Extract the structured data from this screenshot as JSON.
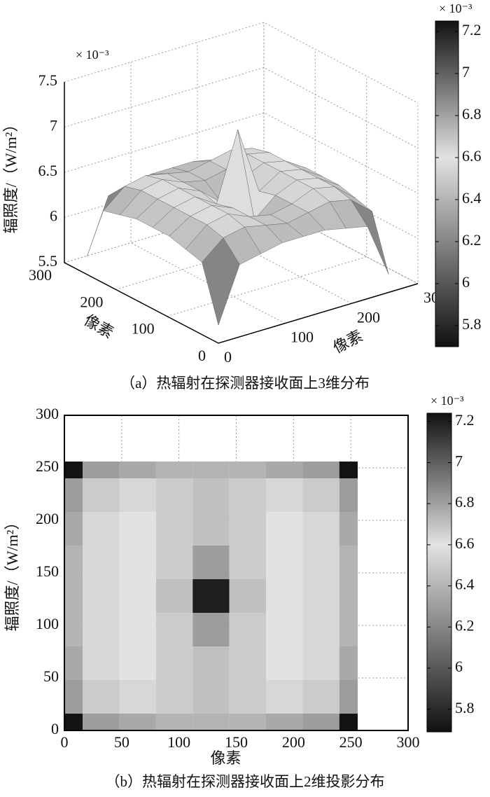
{
  "chart_data": [
    {
      "type": "surface3d",
      "caption": "（a）热辐射在探测器接收面上3维分布",
      "xlabel": "像素",
      "ylabel": "像素",
      "zlabel": "辐照度/（W/m²）",
      "z_multiplier": "× 10⁻³",
      "x": [
        0,
        32,
        64,
        96,
        128,
        160,
        192,
        224,
        256
      ],
      "y": [
        0,
        32,
        64,
        96,
        128,
        160,
        192,
        224,
        256
      ],
      "z": [
        [
          5.7,
          6.3,
          6.35,
          6.4,
          6.4,
          6.4,
          6.35,
          6.3,
          5.7
        ],
        [
          6.3,
          6.5,
          6.55,
          6.5,
          6.45,
          6.5,
          6.55,
          6.5,
          6.3
        ],
        [
          6.35,
          6.55,
          6.6,
          6.5,
          6.45,
          6.5,
          6.6,
          6.55,
          6.35
        ],
        [
          6.4,
          6.55,
          6.6,
          6.5,
          6.3,
          6.5,
          6.6,
          6.55,
          6.4
        ],
        [
          6.4,
          6.55,
          6.6,
          6.45,
          7.2,
          6.45,
          6.6,
          6.55,
          6.4
        ],
        [
          6.4,
          6.55,
          6.6,
          6.5,
          6.3,
          6.5,
          6.6,
          6.55,
          6.4
        ],
        [
          6.35,
          6.55,
          6.6,
          6.5,
          6.45,
          6.5,
          6.6,
          6.55,
          6.35
        ],
        [
          6.3,
          6.5,
          6.55,
          6.5,
          6.45,
          6.5,
          6.55,
          6.5,
          6.3
        ],
        [
          5.7,
          6.3,
          6.35,
          6.4,
          6.4,
          6.4,
          6.35,
          6.3,
          5.7
        ]
      ],
      "xlim": [
        0,
        300
      ],
      "ylim": [
        0,
        300
      ],
      "zlim": [
        5.5,
        7.5
      ],
      "xticks": [
        0,
        100,
        200,
        300
      ],
      "yticks": [
        0,
        100,
        200,
        300
      ],
      "zticks": [
        5.5,
        6,
        6.5,
        7,
        7.5
      ],
      "grid": true,
      "colormap": [
        {
          "value": 5.7,
          "color": "#111111"
        },
        {
          "value": 6.6,
          "color": "#e2e2e2"
        },
        {
          "value": 7.25,
          "color": "#111111"
        }
      ],
      "colorbar": {
        "multiplier": "× 10⁻³",
        "clim": [
          5.7,
          7.25
        ],
        "ticks": [
          5.8,
          6,
          6.2,
          6.4,
          6.6,
          6.8,
          7,
          7.2
        ]
      }
    },
    {
      "type": "heatmap",
      "caption": "（b）热辐射在探测器接收面上2维投影分布",
      "xlabel": "像素",
      "ylabel": "辐照度/（W/m²）",
      "x": [
        0,
        32,
        64,
        96,
        128,
        160,
        192,
        224,
        256
      ],
      "y": [
        0,
        32,
        64,
        96,
        128,
        160,
        192,
        224,
        256
      ],
      "z": [
        [
          5.7,
          6.3,
          6.35,
          6.4,
          6.4,
          6.4,
          6.35,
          6.3,
          5.7
        ],
        [
          6.3,
          6.5,
          6.55,
          6.5,
          6.45,
          6.5,
          6.55,
          6.5,
          6.3
        ],
        [
          6.35,
          6.55,
          6.6,
          6.5,
          6.45,
          6.5,
          6.6,
          6.55,
          6.35
        ],
        [
          6.4,
          6.55,
          6.6,
          6.5,
          6.3,
          6.5,
          6.6,
          6.55,
          6.4
        ],
        [
          6.4,
          6.55,
          6.6,
          6.45,
          7.2,
          6.45,
          6.6,
          6.55,
          6.4
        ],
        [
          6.4,
          6.55,
          6.6,
          6.5,
          6.3,
          6.5,
          6.6,
          6.55,
          6.4
        ],
        [
          6.35,
          6.55,
          6.6,
          6.5,
          6.45,
          6.5,
          6.6,
          6.55,
          6.35
        ],
        [
          6.3,
          6.5,
          6.55,
          6.5,
          6.45,
          6.5,
          6.55,
          6.5,
          6.3
        ],
        [
          5.7,
          6.3,
          6.35,
          6.4,
          6.4,
          6.4,
          6.35,
          6.3,
          5.7
        ]
      ],
      "xlim": [
        0,
        300
      ],
      "ylim": [
        0,
        300
      ],
      "xticks": [
        0,
        50,
        100,
        150,
        200,
        250,
        300
      ],
      "yticks": [
        0,
        50,
        100,
        150,
        200,
        250,
        300
      ],
      "grid": true,
      "colormap": [
        {
          "value": 5.69,
          "color": "#111111"
        },
        {
          "value": 6.6,
          "color": "#e2e2e2"
        },
        {
          "value": 7.24,
          "color": "#111111"
        }
      ],
      "colorbar": {
        "multiplier": "× 10⁻³",
        "clim": [
          5.69,
          7.24
        ],
        "ticks": [
          5.8,
          6,
          6.2,
          6.4,
          6.6,
          6.8,
          7,
          7.2
        ]
      }
    }
  ]
}
